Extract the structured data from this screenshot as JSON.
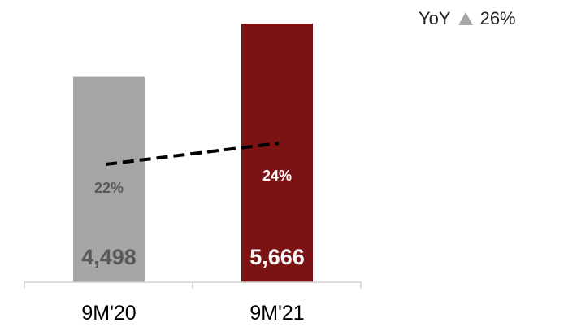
{
  "yoy": {
    "label": "YoY",
    "value": "26%",
    "icon": "up-triangle-icon",
    "icon_color": "#a6a6a6"
  },
  "chart_data": {
    "type": "bar",
    "categories": [
      "9M'20",
      "9M'21"
    ],
    "series": [
      {
        "values": [
          4498,
          5666
        ],
        "value_labels": [
          "4,498",
          "5,666"
        ],
        "colors": [
          "#a6a6a6",
          "#7b1214"
        ]
      },
      {
        "type": "line",
        "style": "dashed",
        "values": [
          22,
          24
        ],
        "value_labels": [
          "22%",
          "24%"
        ],
        "color": "#000000"
      }
    ],
    "label_colors": [
      "#595959",
      "#ffffff"
    ],
    "title": "",
    "xlabel": "",
    "ylabel": "",
    "ylim": [
      0,
      5666
    ],
    "grid": false,
    "legend": "none"
  }
}
